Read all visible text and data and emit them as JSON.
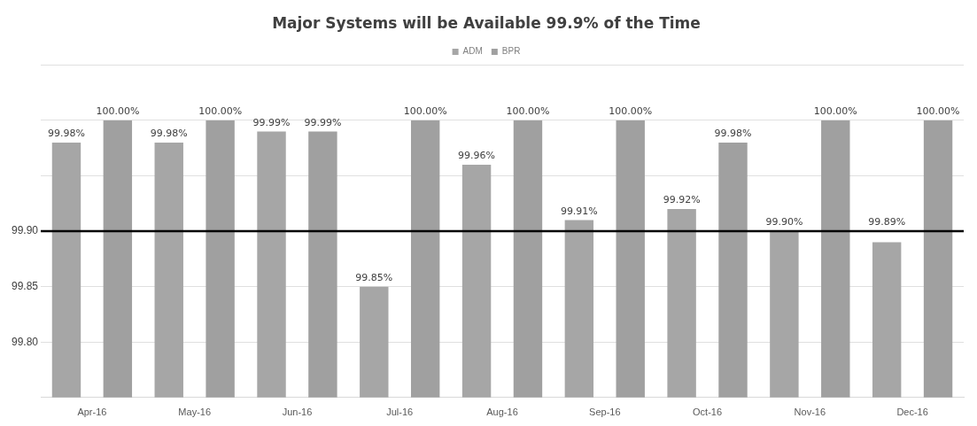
{
  "chart_data": {
    "type": "bar",
    "title": "Major Systems will be Available 99.9% of the Time",
    "categories": [
      "Apr-16",
      "May-16",
      "Jun-16",
      "Jul-16",
      "Aug-16",
      "Sep-16",
      "Oct-16",
      "Nov-16",
      "Dec-16"
    ],
    "series": [
      {
        "name": "ADM",
        "color": "#a6a6a6",
        "values": [
          99.98,
          99.98,
          99.99,
          99.85,
          99.96,
          99.91,
          99.92,
          99.9,
          99.89
        ],
        "value_labels": [
          "99.98%",
          "99.98%",
          "99.99%",
          "99.85%",
          "99.96%",
          "99.91%",
          "99.92%",
          "99.90%",
          "99.89%"
        ]
      },
      {
        "name": "BPR",
        "color": "#a0a0a0",
        "values": [
          100,
          100,
          99.99,
          100,
          100,
          100,
          99.98,
          100,
          100
        ],
        "value_labels": [
          "100.00%",
          "100.00%",
          "99.99%",
          "100.00%",
          "100.00%",
          "100.00%",
          "99.98%",
          "100.00%",
          "100.00%"
        ]
      }
    ],
    "ylim": [
      99.75,
      100.05
    ],
    "yticks": [
      {
        "value": 99.75,
        "label": null
      },
      {
        "value": 99.8,
        "label": "99.80"
      },
      {
        "value": 99.85,
        "label": "99.85"
      },
      {
        "value": 99.9,
        "label": "99.90"
      },
      {
        "value": 99.95,
        "label": null
      },
      {
        "value": 100,
        "label": null
      },
      {
        "value": 100.05,
        "label": null
      }
    ],
    "ref_lines": [
      {
        "axis": "y",
        "value": 99.9,
        "label": null,
        "color": "#000000"
      }
    ],
    "grid": "y",
    "legend": "top"
  }
}
